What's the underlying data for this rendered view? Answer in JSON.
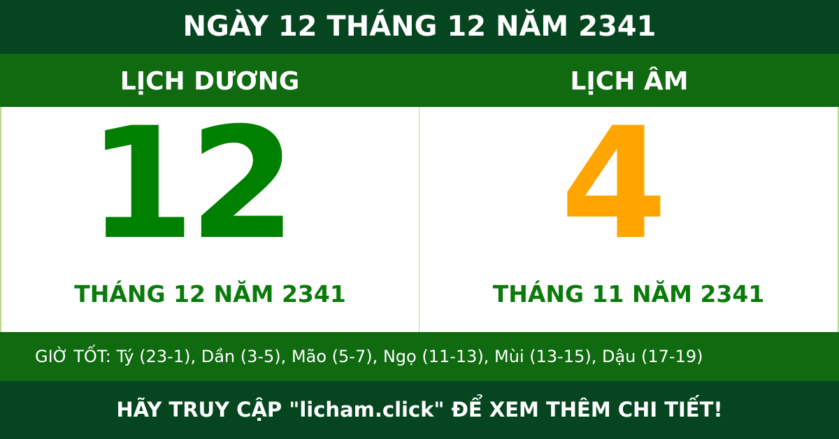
{
  "title": "NGÀY 12 THÁNG 12 NĂM 2341",
  "solar": {
    "label": "LỊCH DƯƠNG",
    "day": "12",
    "month_year": "THÁNG 12 NĂM 2341",
    "color": "#008000"
  },
  "lunar": {
    "label": "LỊCH ÂM",
    "day": "4",
    "month_year": "THÁNG 11 NĂM 2341",
    "color": "#ffa500"
  },
  "good_hours": "GIỜ TỐT: Tý (23-1), Dần (3-5), Mão (5-7), Ngọ (11-13), Mùi (13-15), Dậu (17-19)",
  "footer": "HÃY TRUY CẬP \"licham.click\" ĐỂ XEM THÊM CHI TIẾT!"
}
